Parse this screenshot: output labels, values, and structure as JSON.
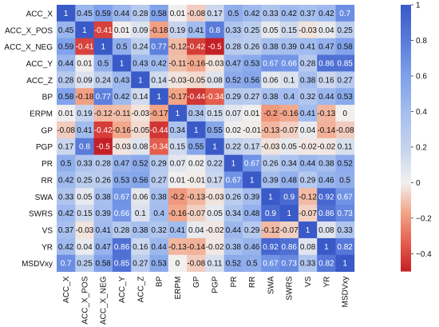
{
  "chart_data": {
    "type": "heatmap",
    "rows": [
      "ACC_X",
      "ACC_X_POS",
      "ACC_X_NEG",
      "ACC_Y",
      "ACC_Z",
      "BP",
      "ERPM",
      "GP",
      "PGP",
      "PR",
      "RR",
      "SWA",
      "SWRS",
      "VS",
      "YR",
      "MSDVxy"
    ],
    "columns": [
      "ACC_X",
      "ACC_X_POS",
      "ACC_X_NEG",
      "ACC_Y",
      "ACC_Z",
      "BP",
      "ERPM",
      "GP",
      "PGP",
      "PR",
      "RR",
      "SWA",
      "SWRS",
      "VS",
      "YR",
      "MSDVxy"
    ],
    "values": [
      [
        1,
        0.45,
        0.59,
        0.44,
        0.28,
        0.58,
        0.01,
        -0.08,
        0.17,
        0.5,
        0.42,
        0.33,
        0.42,
        0.37,
        0.42,
        0.7
      ],
      [
        0.45,
        1,
        -0.41,
        0.01,
        0.09,
        -0.18,
        0.19,
        0.41,
        0.8,
        0.33,
        0.25,
        0.05,
        0.15,
        -0.03,
        0.04,
        0.25
      ],
      [
        0.59,
        -0.41,
        1,
        0.5,
        0.24,
        0.77,
        -0.12,
        -0.42,
        -0.5,
        0.28,
        0.26,
        0.38,
        0.39,
        0.41,
        0.47,
        0.58
      ],
      [
        0.44,
        0.01,
        0.5,
        1,
        0.43,
        0.42,
        -0.11,
        -0.16,
        -0.03,
        0.47,
        0.53,
        0.67,
        0.66,
        0.28,
        0.86,
        0.85
      ],
      [
        0.28,
        0.09,
        0.24,
        0.43,
        1,
        0.14,
        -0.03,
        -0.05,
        0.08,
        0.52,
        0.56,
        0.06,
        0.1,
        0.38,
        0.16,
        0.27
      ],
      [
        0.58,
        -0.18,
        0.77,
        0.42,
        0.14,
        1,
        -0.17,
        -0.44,
        -0.34,
        0.29,
        0.27,
        0.38,
        0.4,
        0.32,
        0.44,
        0.53
      ],
      [
        0.01,
        0.19,
        -0.12,
        -0.11,
        -0.03,
        -0.17,
        1,
        0.34,
        0.15,
        0.07,
        0.01,
        -0.2,
        -0.16,
        0.41,
        -0.13,
        0
      ],
      [
        -0.08,
        0.41,
        -0.42,
        -0.16,
        -0.05,
        -0.44,
        0.34,
        1,
        0.55,
        0.02,
        -0.01,
        -0.13,
        -0.07,
        0.04,
        -0.14,
        -0.08
      ],
      [
        0.17,
        0.8,
        -0.5,
        -0.03,
        0.08,
        -0.34,
        0.15,
        0.55,
        1,
        0.22,
        0.17,
        -0.03,
        0.05,
        -0.02,
        -0.02,
        0.11
      ],
      [
        0.5,
        0.33,
        0.28,
        0.47,
        0.52,
        0.29,
        0.07,
        0.02,
        0.22,
        1,
        0.67,
        0.26,
        0.34,
        0.44,
        0.38,
        0.52
      ],
      [
        0.42,
        0.25,
        0.26,
        0.53,
        0.56,
        0.27,
        0.01,
        -0.01,
        0.17,
        0.67,
        1,
        0.39,
        0.48,
        0.29,
        0.46,
        0.5
      ],
      [
        0.33,
        0.05,
        0.38,
        0.67,
        0.06,
        0.38,
        -0.2,
        -0.13,
        -0.03,
        0.26,
        0.39,
        1,
        0.9,
        -0.12,
        0.92,
        0.67
      ],
      [
        0.42,
        0.15,
        0.39,
        0.66,
        0.1,
        0.4,
        -0.16,
        -0.07,
        0.05,
        0.34,
        0.48,
        0.9,
        1,
        -0.07,
        0.86,
        0.73
      ],
      [
        0.37,
        -0.03,
        0.41,
        0.28,
        0.38,
        0.32,
        0.41,
        0.04,
        -0.02,
        0.44,
        0.29,
        -0.12,
        -0.07,
        1,
        0.08,
        0.33
      ],
      [
        0.42,
        0.04,
        0.47,
        0.86,
        0.16,
        0.44,
        -0.13,
        -0.14,
        -0.02,
        0.38,
        0.46,
        0.92,
        0.86,
        0.08,
        1,
        0.82
      ],
      [
        0.7,
        0.25,
        0.58,
        0.85,
        0.27,
        0.53,
        0,
        -0.08,
        0.11,
        0.52,
        0.5,
        0.67,
        0.73,
        0.33,
        0.82,
        1
      ]
    ],
    "highlight_label": "MSDVxy",
    "colorbar": {
      "min": -0.5,
      "max": 1,
      "ticks": [
        1,
        0.8,
        0.6,
        0.4,
        0.2,
        0,
        -0.2,
        -0.4
      ]
    },
    "colors": {
      "low": "#c41f26",
      "mid": "#f2f0ee",
      "high": "#3a5ac8",
      "highlight_label": "#1f1f8a"
    }
  }
}
